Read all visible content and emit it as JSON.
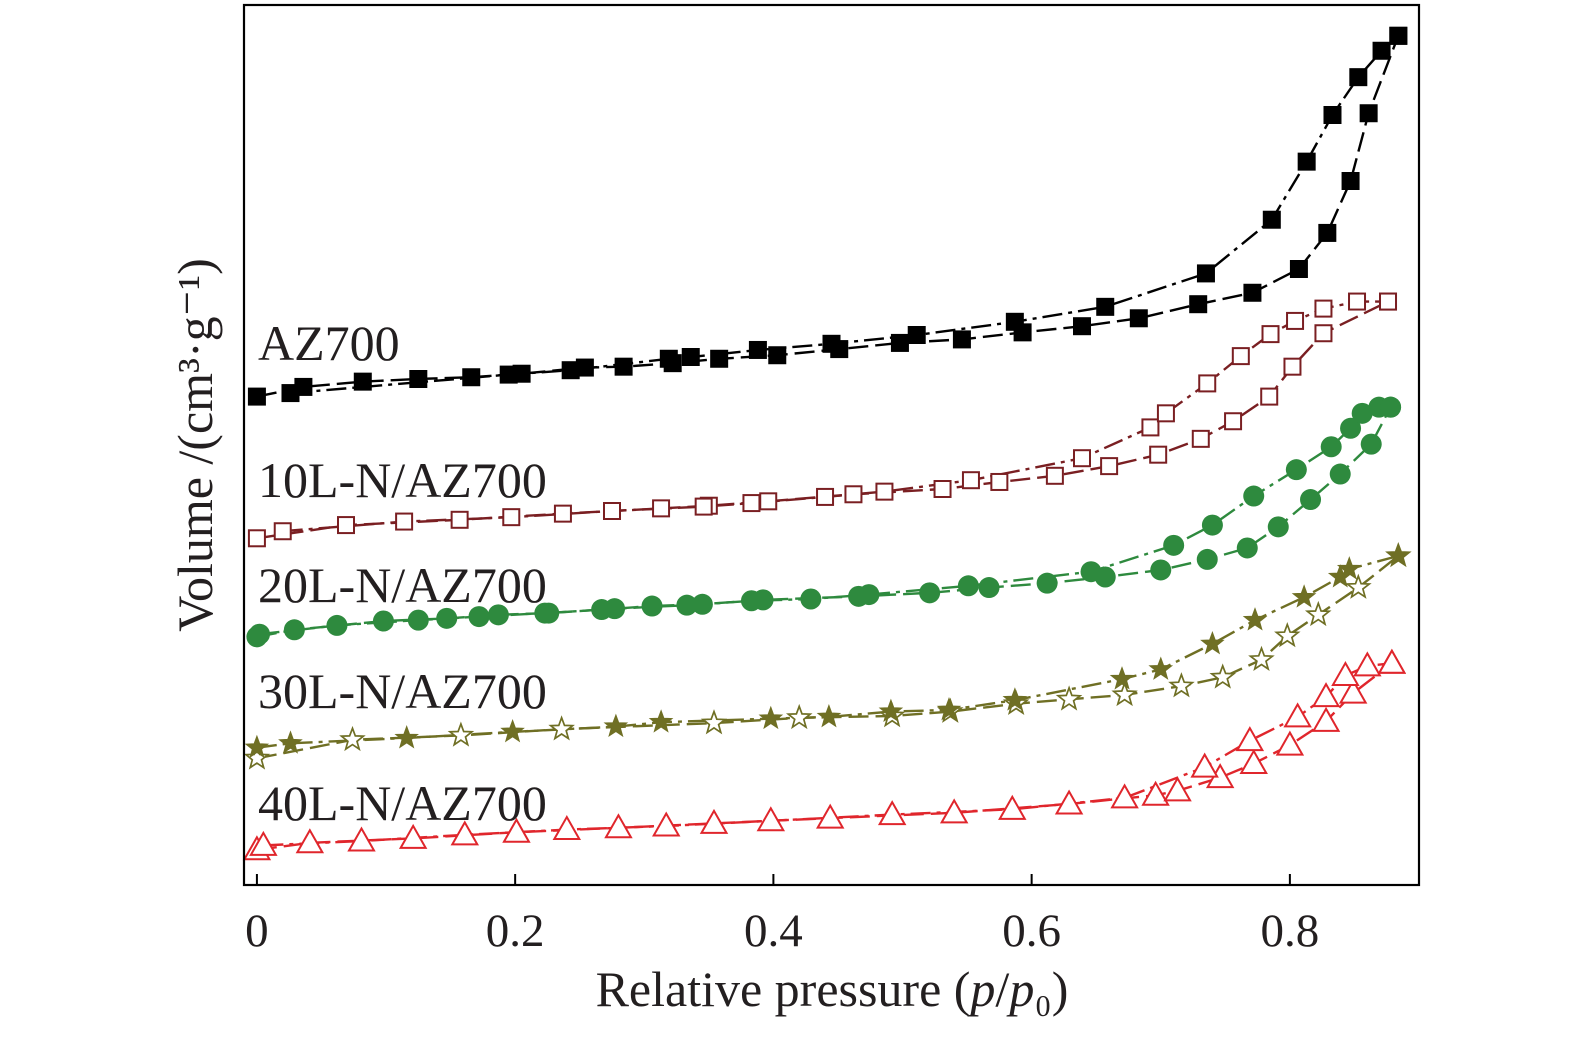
{
  "chart_data": {
    "type": "line",
    "xlabel": "Relative pressure (p/p₀)",
    "ylabel": "Volume /(cm³·g⁻¹)",
    "xlim": [
      -0.01,
      0.9
    ],
    "ylim": [
      0,
      100
    ],
    "x_ticks": [
      0,
      0.2,
      0.4,
      0.6,
      0.8
    ],
    "x_tick_labels": [
      "0",
      "0.2",
      "0.4",
      "0.6",
      "0.8"
    ],
    "y_ticks": [],
    "grid": false,
    "legend": "inline-left",
    "series": [
      {
        "name": "AZ700",
        "color": "#000000",
        "branches": [
          {
            "marker": "square-filled",
            "x": [
              0,
              0.036,
              0.082,
              0.125,
              0.166,
              0.205,
              0.254,
              0.284,
              0.322,
              0.358,
              0.403,
              0.451,
              0.498,
              0.546,
              0.593,
              0.639,
              0.683,
              0.729,
              0.771,
              0.807,
              0.829,
              0.847,
              0.861,
              0.884
            ],
            "y": [
              55.5,
              56.6,
              57.2,
              57.5,
              57.7,
              58.1,
              58.8,
              58.9,
              59.3,
              59.8,
              60.2,
              60.9,
              61.6,
              62.0,
              62.8,
              63.5,
              64.4,
              66.0,
              67.3,
              70.0,
              74.1,
              80.0,
              87.7,
              96.5
            ]
          },
          {
            "marker": "square-filled",
            "x": [
              0.026,
              0.195,
              0.243,
              0.319,
              0.336,
              0.388,
              0.445,
              0.511,
              0.587,
              0.657,
              0.735,
              0.786,
              0.813,
              0.833,
              0.853,
              0.871,
              0.884
            ],
            "y": [
              55.9,
              58.0,
              58.5,
              59.8,
              60.0,
              60.8,
              61.5,
              62.5,
              64.0,
              65.7,
              69.5,
              75.6,
              82.2,
              87.5,
              91.8,
              94.8,
              96.5
            ]
          }
        ]
      },
      {
        "name": "10L-N/AZ700",
        "color": "#7a1f22",
        "branches": [
          {
            "marker": "square-open",
            "x": [
              0,
              0.069,
              0.157,
              0.237,
              0.313,
              0.35,
              0.396,
              0.462,
              0.531,
              0.575,
              0.618,
              0.66,
              0.698,
              0.731,
              0.756,
              0.784,
              0.802,
              0.826,
              0.876
            ],
            "y": [
              39.4,
              40.9,
              41.5,
              42.2,
              42.8,
              43.1,
              43.6,
              44.4,
              45.0,
              45.8,
              46.5,
              47.6,
              48.9,
              50.7,
              52.7,
              55.5,
              58.9,
              62.7,
              66.3
            ]
          },
          {
            "marker": "square-open",
            "x": [
              0.02,
              0.114,
              0.197,
              0.275,
              0.346,
              0.383,
              0.44,
              0.486,
              0.553,
              0.639,
              0.692,
              0.704,
              0.736,
              0.762,
              0.785,
              0.804,
              0.826,
              0.852,
              0.876
            ],
            "y": [
              40.2,
              41.3,
              41.8,
              42.5,
              43.0,
              43.4,
              44.1,
              44.7,
              46.0,
              48.5,
              52.0,
              53.6,
              57.0,
              60.1,
              62.6,
              64.1,
              65.5,
              66.3,
              66.3
            ]
          }
        ]
      },
      {
        "name": "20L-N/AZ700",
        "color": "#2e8a3e",
        "branches": [
          {
            "marker": "circle-filled",
            "x": [
              0,
              0.029,
              0.098,
              0.147,
              0.187,
              0.226,
              0.277,
              0.333,
              0.392,
              0.466,
              0.521,
              0.567,
              0.612,
              0.657,
              0.7,
              0.736,
              0.767,
              0.791,
              0.816,
              0.839,
              0.863,
              0.878
            ],
            "y": [
              28.2,
              29.0,
              30.0,
              30.3,
              30.7,
              30.9,
              31.4,
              31.8,
              32.4,
              32.8,
              33.2,
              33.8,
              34.3,
              35.0,
              35.8,
              37.0,
              38.3,
              40.7,
              43.8,
              46.7,
              50.1,
              54.3
            ]
          },
          {
            "marker": "circle-filled",
            "x": [
              0.002,
              0.062,
              0.125,
              0.172,
              0.223,
              0.267,
              0.306,
              0.345,
              0.383,
              0.429,
              0.474,
              0.551,
              0.646,
              0.71,
              0.74,
              0.772,
              0.805,
              0.832,
              0.847,
              0.856,
              0.869,
              0.878
            ],
            "y": [
              28.5,
              29.5,
              30.1,
              30.5,
              30.9,
              31.3,
              31.7,
              31.9,
              32.3,
              32.5,
              33.0,
              34.0,
              35.6,
              38.6,
              40.9,
              44.2,
              47.2,
              49.8,
              51.9,
              53.6,
              54.3,
              54.3
            ]
          }
        ]
      },
      {
        "name": "30L-N/AZ700",
        "color": "#6f6f24",
        "branches": [
          {
            "marker": "star-open",
            "x": [
              0,
              0.074,
              0.158,
              0.236,
              0.354,
              0.42,
              0.492,
              0.537,
              0.588,
              0.629,
              0.672,
              0.716,
              0.748,
              0.778,
              0.798,
              0.822,
              0.853,
              0.884
            ],
            "y": [
              14.4,
              16.5,
              17.0,
              17.7,
              18.4,
              19.0,
              19.2,
              19.7,
              20.6,
              21.1,
              21.6,
              22.6,
              23.6,
              25.6,
              28.3,
              30.7,
              33.8,
              37.4
            ]
          },
          {
            "marker": "star-filled",
            "x": [
              0,
              0.026,
              0.116,
              0.198,
              0.278,
              0.313,
              0.398,
              0.443,
              0.491,
              0.536,
              0.587,
              0.67,
              0.7,
              0.74,
              0.773,
              0.811,
              0.839,
              0.846,
              0.884
            ],
            "y": [
              15.6,
              16.1,
              16.7,
              17.4,
              18.0,
              18.5,
              18.9,
              19.1,
              19.7,
              19.9,
              21.0,
              23.4,
              24.5,
              27.4,
              30.1,
              32.7,
              35.0,
              35.9,
              37.4
            ]
          }
        ]
      },
      {
        "name": "40L-N/AZ700",
        "color": "#e0262c",
        "branches": [
          {
            "marker": "triangle-open",
            "x": [
              0,
              0.041,
              0.121,
              0.201,
              0.28,
              0.354,
              0.444,
              0.54,
              0.629,
              0.696,
              0.713,
              0.746,
              0.772,
              0.8,
              0.828,
              0.849,
              0.879
            ],
            "y": [
              4.0,
              4.8,
              5.3,
              6.0,
              6.5,
              7.0,
              7.6,
              8.2,
              9.2,
              10.2,
              10.7,
              12.2,
              13.8,
              15.9,
              18.6,
              21.8,
              25.2
            ]
          },
          {
            "marker": "triangle-open",
            "x": [
              0.005,
              0.081,
              0.161,
              0.24,
              0.317,
              0.398,
              0.492,
              0.585,
              0.672,
              0.734,
              0.769,
              0.806,
              0.828,
              0.843,
              0.86,
              0.879
            ],
            "y": [
              4.5,
              5.0,
              5.7,
              6.3,
              6.7,
              7.3,
              8.0,
              8.6,
              9.9,
              13.4,
              16.4,
              19.1,
              21.4,
              23.8,
              24.9,
              25.2
            ]
          }
        ]
      }
    ]
  }
}
